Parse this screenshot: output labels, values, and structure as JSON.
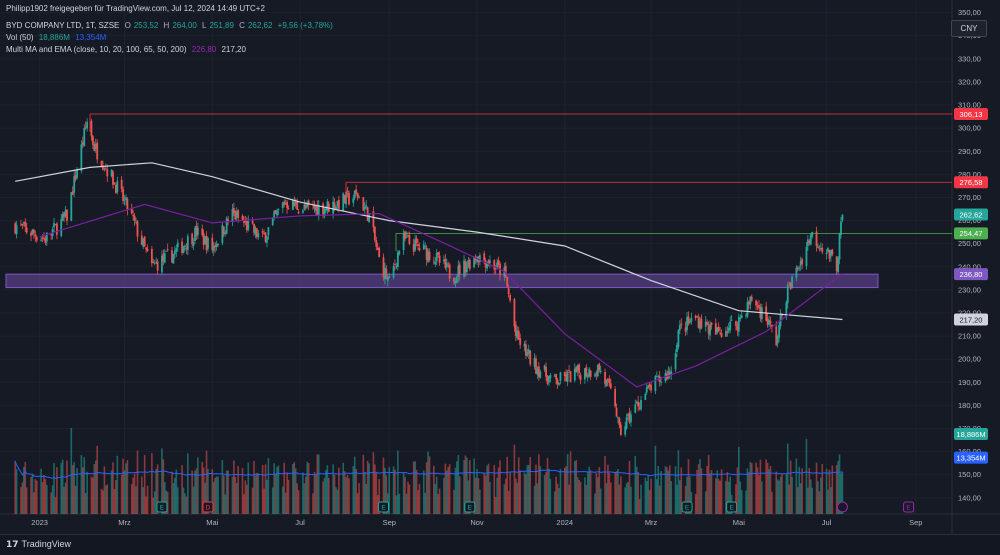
{
  "header": {
    "line1": {
      "author": "Philipp1902 freigegeben für TradingView.com, Jul 12, 2024 14:49 UTC+2",
      "symbol": "BYD COMPANY LTD, 1T, SZSE",
      "open_label": "O",
      "open": "253,52",
      "high_label": "H",
      "high": "264,00",
      "low_label": "L",
      "low": "251,89",
      "close_label": "C",
      "close": "262,62",
      "change": "+9,56 (+3,78%)"
    },
    "line2": {
      "name": "Vol (50)",
      "v1": "18,886M",
      "v2": "13,354M"
    },
    "line3": {
      "name": "Multi MA and EMA (close, 10, 20, 100, 65, 50, 200)",
      "v1": "226,80",
      "v2": "217,20"
    }
  },
  "currency": "CNY",
  "footer": {
    "logo_text": "TradingView"
  },
  "colors": {
    "bg": "#161a25",
    "up": "#26a69a",
    "down": "#ef5350",
    "grid": "#1e222d",
    "text": "#b2b5be",
    "volume_ma": "#2962ff",
    "ma_200": "#d1d4dc",
    "ema_50": "#7b1fa2",
    "zone": "#7e57c2",
    "res_line": "#f23645",
    "sup_line": "#4caf50",
    "earnings": "#26a69a",
    "dividend": "#f23645"
  },
  "chart_data": {
    "type": "candlestick",
    "price_axis_ticks": [
      140,
      150,
      160,
      170,
      180,
      190,
      200,
      210,
      220,
      230,
      240,
      250,
      260,
      270,
      280,
      290,
      300,
      310,
      320,
      330,
      340,
      350
    ],
    "price_range": [
      133,
      352
    ],
    "time_axis": [
      {
        "label": "2023",
        "date": "2023-01-01"
      },
      {
        "label": "Mrz",
        "date": "2023-03-01"
      },
      {
        "label": "Mai",
        "date": "2023-05-01"
      },
      {
        "label": "Jul",
        "date": "2023-07-01"
      },
      {
        "label": "Sep",
        "date": "2023-09-01"
      },
      {
        "label": "Nov",
        "date": "2023-11-01"
      },
      {
        "label": "2024",
        "date": "2024-01-01"
      },
      {
        "label": "Mrz",
        "date": "2024-03-01"
      },
      {
        "label": "Mai",
        "date": "2024-05-01"
      },
      {
        "label": "Jul",
        "date": "2024-07-01"
      },
      {
        "label": "Sep",
        "date": "2024-09-01"
      }
    ],
    "price_path": [
      {
        "date": "2022-12-15",
        "price": 258
      },
      {
        "date": "2023-01-05",
        "price": 252
      },
      {
        "date": "2023-01-20",
        "price": 262
      },
      {
        "date": "2023-02-03",
        "price": 303
      },
      {
        "date": "2023-02-08",
        "price": 292
      },
      {
        "date": "2023-02-20",
        "price": 279
      },
      {
        "date": "2023-03-05",
        "price": 263
      },
      {
        "date": "2023-03-20",
        "price": 240
      },
      {
        "date": "2023-04-05",
        "price": 246
      },
      {
        "date": "2023-04-20",
        "price": 255
      },
      {
        "date": "2023-05-01",
        "price": 248
      },
      {
        "date": "2023-05-15",
        "price": 263
      },
      {
        "date": "2023-06-05",
        "price": 252
      },
      {
        "date": "2023-06-20",
        "price": 268
      },
      {
        "date": "2023-07-05",
        "price": 265
      },
      {
        "date": "2023-07-20",
        "price": 266
      },
      {
        "date": "2023-08-10",
        "price": 271
      },
      {
        "date": "2023-08-18",
        "price": 262
      },
      {
        "date": "2023-08-25",
        "price": 243
      },
      {
        "date": "2023-09-01",
        "price": 233
      },
      {
        "date": "2023-09-10",
        "price": 252
      },
      {
        "date": "2023-10-01",
        "price": 245
      },
      {
        "date": "2023-10-15",
        "price": 236
      },
      {
        "date": "2023-11-01",
        "price": 245
      },
      {
        "date": "2023-11-10",
        "price": 242
      },
      {
        "date": "2023-11-20",
        "price": 237
      },
      {
        "date": "2023-11-25",
        "price": 222
      },
      {
        "date": "2023-11-28",
        "price": 210
      },
      {
        "date": "2023-12-10",
        "price": 198
      },
      {
        "date": "2023-12-25",
        "price": 190
      },
      {
        "date": "2024-01-10",
        "price": 194
      },
      {
        "date": "2024-01-25",
        "price": 196
      },
      {
        "date": "2024-02-05",
        "price": 181
      },
      {
        "date": "2024-02-08",
        "price": 168
      },
      {
        "date": "2024-02-20",
        "price": 180
      },
      {
        "date": "2024-03-01",
        "price": 188
      },
      {
        "date": "2024-03-15",
        "price": 195
      },
      {
        "date": "2024-03-20",
        "price": 212
      },
      {
        "date": "2024-04-01",
        "price": 218
      },
      {
        "date": "2024-04-15",
        "price": 211
      },
      {
        "date": "2024-04-30",
        "price": 216
      },
      {
        "date": "2024-05-10",
        "price": 226
      },
      {
        "date": "2024-05-20",
        "price": 218
      },
      {
        "date": "2024-05-27",
        "price": 208
      },
      {
        "date": "2024-06-03",
        "price": 228
      },
      {
        "date": "2024-06-14",
        "price": 244
      },
      {
        "date": "2024-06-20",
        "price": 254
      },
      {
        "date": "2024-06-28",
        "price": 249
      },
      {
        "date": "2024-07-08",
        "price": 241
      },
      {
        "date": "2024-07-12",
        "price": 262.62
      }
    ],
    "ema_50_path": [
      {
        "date": "2023-01-01",
        "price": 253
      },
      {
        "date": "2023-03-15",
        "price": 267
      },
      {
        "date": "2023-05-01",
        "price": 259
      },
      {
        "date": "2023-07-01",
        "price": 262
      },
      {
        "date": "2023-08-25",
        "price": 263
      },
      {
        "date": "2023-10-10",
        "price": 250
      },
      {
        "date": "2023-11-20",
        "price": 238
      },
      {
        "date": "2024-01-01",
        "price": 211
      },
      {
        "date": "2024-02-20",
        "price": 188
      },
      {
        "date": "2024-04-01",
        "price": 197
      },
      {
        "date": "2024-05-20",
        "price": 212
      },
      {
        "date": "2024-07-12",
        "price": 237
      }
    ],
    "ma_200_path": [
      {
        "date": "2022-12-15",
        "price": 277
      },
      {
        "date": "2023-02-05",
        "price": 283
      },
      {
        "date": "2023-03-20",
        "price": 285
      },
      {
        "date": "2023-05-01",
        "price": 279
      },
      {
        "date": "2023-07-01",
        "price": 268
      },
      {
        "date": "2023-09-01",
        "price": 260
      },
      {
        "date": "2023-11-01",
        "price": 255
      },
      {
        "date": "2024-01-01",
        "price": 249
      },
      {
        "date": "2024-03-01",
        "price": 234
      },
      {
        "date": "2024-05-01",
        "price": 221
      },
      {
        "date": "2024-07-12",
        "price": 217.2
      }
    ],
    "levels": [
      {
        "name": "resistance-306",
        "price": 306.13,
        "label": "306,13",
        "kind": "resistance"
      },
      {
        "name": "resistance-276",
        "price": 276.58,
        "label": "276,58",
        "kind": "resistance"
      },
      {
        "name": "support-254",
        "price": 254.47,
        "label": "254,47",
        "kind": "support"
      }
    ],
    "zone": {
      "from": 231,
      "to": 236.8,
      "label": "236,80"
    },
    "price_badges": [
      {
        "name": "last-price",
        "price": 262.62,
        "label": "262,62",
        "kind": "up"
      },
      {
        "name": "ma-200-value",
        "price": 217.2,
        "label": "217,20",
        "kind": "ma"
      }
    ],
    "volume": {
      "range_max": 50000000,
      "last": 18886000,
      "last_label": "18,886M",
      "ma": 13354000,
      "ma_label": "13,354M"
    },
    "events": [
      {
        "date": "2023-03-27",
        "type": "earnings",
        "glyph": "E"
      },
      {
        "date": "2023-04-28",
        "type": "dividend",
        "glyph": "D"
      },
      {
        "date": "2023-08-28",
        "type": "earnings",
        "glyph": "E"
      },
      {
        "date": "2023-10-27",
        "type": "earnings",
        "glyph": "E"
      },
      {
        "date": "2024-03-26",
        "type": "earnings",
        "glyph": "E"
      },
      {
        "date": "2024-04-26",
        "type": "earnings",
        "glyph": "E"
      },
      {
        "date": "2024-08-27",
        "type": "earnings-future",
        "glyph": "E"
      }
    ]
  }
}
